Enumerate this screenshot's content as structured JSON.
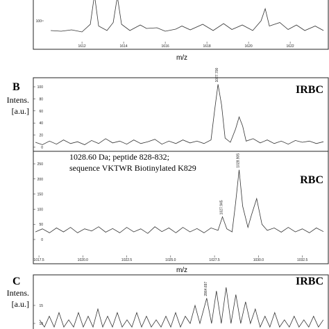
{
  "panel_labels": [
    {
      "letter": "B",
      "ylabel": [
        "Intens.",
        "[a.u.]"
      ]
    },
    {
      "letter": "C",
      "ylabel": [
        "Intens.",
        "[a.u.]"
      ]
    }
  ],
  "annotation": [
    "1028.60 Da; peptide 828-832;",
    "sequence VKTWR Biotinylated K829"
  ],
  "chart_data": [
    {
      "type": "line",
      "color": "#333",
      "x": [
        1610.5,
        1611,
        1611.5,
        1612,
        1612.4,
        1612.6,
        1612.8,
        1613.2,
        1613.5,
        1613.7,
        1613.9,
        1614.3,
        1614.8,
        1615.1,
        1615.6,
        1616,
        1616.5,
        1616.8,
        1617.2,
        1617.8,
        1618.3,
        1618.8,
        1619.2,
        1619.7,
        1620.2,
        1620.6,
        1620.8,
        1621,
        1621.5,
        1621.9,
        1622.3,
        1622.7,
        1623.2,
        1623.6
      ],
      "values": [
        72,
        70,
        74,
        68,
        90,
        175,
        85,
        72,
        95,
        170,
        90,
        72,
        88,
        78,
        80,
        70,
        76,
        85,
        74,
        90,
        72,
        92,
        75,
        88,
        72,
        100,
        135,
        85,
        95,
        75,
        88,
        72,
        85,
        72
      ],
      "xlim": [
        1610.13,
        1623.73
      ],
      "ylim": [
        40,
        160
      ],
      "xticks": [
        1612,
        1614,
        1616,
        1618,
        1620,
        1622
      ],
      "yticks": [
        100
      ],
      "xlabel": "m/z"
    },
    {
      "type": "line",
      "color": "#333",
      "title": "IRBC",
      "x": [
        1017.3,
        1017.7,
        1018.1,
        1018.5,
        1018.9,
        1019.3,
        1019.7,
        1020.1,
        1020.5,
        1020.9,
        1021.3,
        1021.7,
        1022.1,
        1022.5,
        1022.9,
        1023.3,
        1023.7,
        1024.1,
        1024.5,
        1024.9,
        1025.3,
        1025.7,
        1026.1,
        1026.5,
        1026.9,
        1027.3,
        1027.5,
        1027.7,
        1027.9,
        1028.1,
        1028.4,
        1028.7,
        1028.9,
        1029.1,
        1029.3,
        1029.7,
        1030.1,
        1030.5,
        1030.9,
        1031.3,
        1031.7,
        1032.1,
        1032.5,
        1032.9,
        1033.3,
        1033.7
      ],
      "values": [
        8,
        4,
        10,
        5,
        12,
        6,
        9,
        4,
        11,
        6,
        14,
        7,
        10,
        5,
        12,
        6,
        9,
        13,
        5,
        10,
        6,
        12,
        7,
        10,
        6,
        12,
        60,
        104,
        70,
        15,
        8,
        30,
        50,
        35,
        10,
        14,
        7,
        12,
        6,
        10,
        5,
        11,
        8,
        10,
        6,
        9
      ],
      "xlim": [
        1017.26,
        1033.86
      ],
      "ylim": [
        0,
        110
      ],
      "yticks": [
        0,
        20,
        40,
        60,
        80,
        100
      ],
      "peak_labels": [
        {
          "x": 1027.7,
          "label": "1027.700"
        }
      ]
    },
    {
      "type": "line",
      "color": "#333",
      "title": "RBC",
      "x": [
        1017.3,
        1017.7,
        1018.1,
        1018.5,
        1018.9,
        1019.3,
        1019.7,
        1020.1,
        1020.5,
        1020.9,
        1021.3,
        1021.7,
        1022.1,
        1022.5,
        1022.9,
        1023.3,
        1023.7,
        1024.1,
        1024.5,
        1024.9,
        1025.3,
        1025.7,
        1026.1,
        1026.5,
        1026.9,
        1027.3,
        1027.7,
        1027.95,
        1028.2,
        1028.5,
        1028.7,
        1028.9,
        1029.1,
        1029.4,
        1029.6,
        1029.9,
        1030.2,
        1030.5,
        1030.9,
        1031.3,
        1031.7,
        1032.1,
        1032.5,
        1032.9,
        1033.3,
        1033.7
      ],
      "values": [
        25,
        35,
        22,
        38,
        25,
        40,
        22,
        35,
        28,
        42,
        24,
        36,
        22,
        40,
        25,
        35,
        20,
        42,
        26,
        38,
        22,
        40,
        25,
        36,
        22,
        38,
        30,
        75,
        35,
        25,
        120,
        230,
        110,
        40,
        80,
        135,
        50,
        30,
        38,
        24,
        40,
        25,
        35,
        22,
        38,
        26
      ],
      "xlim": [
        1017.26,
        1033.86
      ],
      "ylim": [
        0,
        270
      ],
      "yticks": [
        0,
        50,
        100,
        150,
        200,
        250
      ],
      "xticks": [
        {
          "value": 1017.5,
          "label": "1017.5"
        },
        {
          "value": 1020,
          "label": "1020.0"
        },
        {
          "value": 1022.5,
          "label": "1022.5"
        },
        {
          "value": 1025,
          "label": "1025.0"
        },
        {
          "value": 1027.5,
          "label": "1027.5"
        },
        {
          "value": 1030,
          "label": "1030.0"
        },
        {
          "value": 1032.5,
          "label": "1032.5"
        }
      ],
      "xlabel": "m/z",
      "peak_labels": [
        {
          "x": 1027.945,
          "label": "1027.945"
        },
        {
          "x": 1028.905,
          "label": "1028.905"
        }
      ]
    },
    {
      "type": "line",
      "color": "#333",
      "title": "IRBC",
      "x": [
        2847.5,
        2848,
        2848.5,
        2849,
        2849.5,
        2850,
        2850.5,
        2851,
        2851.5,
        2852,
        2852.5,
        2853,
        2853.5,
        2854,
        2854.5,
        2855,
        2855.5,
        2856,
        2856.5,
        2857,
        2857.5,
        2858,
        2858.5,
        2859,
        2859.5,
        2860,
        2860.5,
        2861,
        2861.5,
        2862,
        2862.5,
        2863,
        2863.5,
        2864,
        2864.7,
        2865.2,
        2865.7,
        2866.2,
        2866.7,
        2867.2,
        2867.7,
        2868.2,
        2868.7,
        2869.2,
        2869.7,
        2870.2,
        2870.7,
        2871.2,
        2871.7,
        2872.2,
        2872.7,
        2873.2,
        2873.7,
        2874.2,
        2874.7,
        2875.2,
        2875.7,
        2876.2,
        2876.7
      ],
      "values": [
        11,
        9,
        12,
        9,
        13,
        9,
        11,
        9,
        13,
        9,
        12,
        9,
        14,
        9,
        12,
        9,
        13,
        9,
        11,
        9,
        13,
        9,
        12,
        9,
        11,
        9,
        12,
        9,
        13,
        9,
        12,
        10,
        15,
        10,
        17,
        10,
        19,
        10,
        20,
        10,
        18,
        10,
        16,
        10,
        14,
        9,
        12,
        9,
        13,
        9,
        11,
        9,
        12,
        9,
        11,
        9,
        12,
        9,
        11
      ],
      "xlim": [
        2847,
        2877
      ],
      "ylim": [
        8.5,
        24
      ],
      "yticks": [
        10,
        15
      ],
      "peak_labels": [
        {
          "x": 2864.697,
          "label": "2864.697"
        }
      ]
    }
  ]
}
